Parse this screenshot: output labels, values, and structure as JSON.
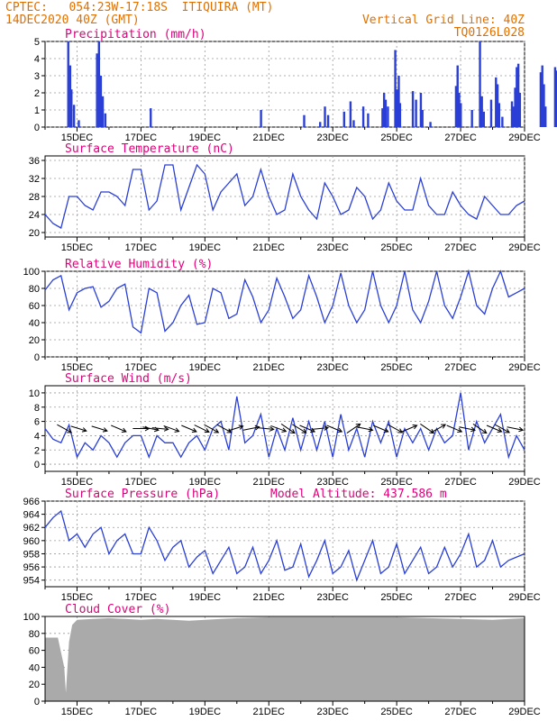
{
  "header": {
    "line1_left": "CPTEC:   054:23W-17:18S  ITIQUIRA (MT)",
    "line2_left": "14DEC2020 40Z (GMT)",
    "line1_right": "Vertical Grid Line: 40Z",
    "line2_right": "TQ0126L028"
  },
  "date_labels": [
    "15DEC",
    "17DEC",
    "19DEC",
    "21DEC",
    "23DEC",
    "25DEC",
    "27DEC",
    "29DEC"
  ],
  "colors": {
    "series": "#2a3fd6",
    "title": "#e0007a",
    "header": "#e07000",
    "cloud": "#aaaaaa",
    "grid": "#999999"
  },
  "chart_data": [
    {
      "type": "bar",
      "title": "Precipitation (mm/h)",
      "ylim": [
        0,
        5
      ],
      "yticks": [
        0,
        1,
        2,
        3,
        4,
        5
      ],
      "x_unit": "days since 14DEC2020 00Z",
      "values": [
        [
          0.72,
          5.0
        ],
        [
          0.78,
          3.6
        ],
        [
          0.82,
          2.2
        ],
        [
          0.9,
          1.3
        ],
        [
          1.05,
          0.4
        ],
        [
          1.62,
          4.3
        ],
        [
          1.68,
          5.0
        ],
        [
          1.74,
          3.0
        ],
        [
          1.8,
          1.8
        ],
        [
          1.88,
          0.8
        ],
        [
          3.3,
          1.1
        ],
        [
          6.75,
          1.0
        ],
        [
          8.1,
          0.7
        ],
        [
          8.6,
          0.3
        ],
        [
          8.75,
          1.2
        ],
        [
          8.85,
          0.7
        ],
        [
          9.35,
          0.9
        ],
        [
          9.55,
          1.5
        ],
        [
          9.65,
          0.4
        ],
        [
          9.95,
          1.2
        ],
        [
          10.1,
          0.8
        ],
        [
          10.55,
          1.1
        ],
        [
          10.6,
          2.0
        ],
        [
          10.65,
          1.6
        ],
        [
          10.72,
          1.2
        ],
        [
          10.95,
          4.5
        ],
        [
          11.0,
          2.2
        ],
        [
          11.06,
          3.0
        ],
        [
          11.1,
          1.4
        ],
        [
          11.5,
          2.1
        ],
        [
          11.6,
          1.6
        ],
        [
          11.75,
          2.0
        ],
        [
          11.8,
          1.0
        ],
        [
          12.05,
          0.3
        ],
        [
          12.85,
          2.4
        ],
        [
          12.9,
          3.6
        ],
        [
          12.95,
          2.0
        ],
        [
          13.0,
          1.4
        ],
        [
          13.35,
          1.0
        ],
        [
          13.6,
          5.0
        ],
        [
          13.66,
          1.8
        ],
        [
          13.72,
          0.9
        ],
        [
          13.95,
          1.6
        ],
        [
          14.1,
          2.9
        ],
        [
          14.15,
          2.5
        ],
        [
          14.2,
          1.4
        ],
        [
          14.3,
          0.6
        ],
        [
          14.6,
          1.5
        ],
        [
          14.65,
          1.2
        ],
        [
          14.7,
          2.3
        ],
        [
          14.75,
          3.5
        ],
        [
          14.8,
          3.7
        ],
        [
          14.85,
          2.0
        ],
        [
          15.5,
          3.2
        ],
        [
          15.55,
          3.6
        ],
        [
          15.6,
          2.5
        ],
        [
          15.65,
          1.2
        ],
        [
          15.95,
          3.5
        ],
        [
          16.0,
          3.3
        ],
        [
          16.05,
          3.1
        ],
        [
          16.1,
          2.6
        ],
        [
          16.15,
          1.5
        ],
        [
          16.2,
          0.7
        ]
      ]
    },
    {
      "type": "line",
      "title": "Surface Temperature (nC)",
      "ylim": [
        19,
        37
      ],
      "yticks": [
        20,
        24,
        28,
        32,
        36
      ],
      "x": [
        0,
        0.25,
        0.5,
        0.75,
        1,
        1.25,
        1.5,
        1.75,
        2,
        2.25,
        2.5,
        2.75,
        3,
        3.25,
        3.5,
        3.75,
        4,
        4.25,
        4.5,
        4.75,
        5,
        5.25,
        5.5,
        5.75,
        6,
        6.25,
        6.5,
        6.75,
        7,
        7.25,
        7.5,
        7.75,
        8,
        8.25,
        8.5,
        8.75,
        9,
        9.25,
        9.5,
        9.75,
        10,
        10.25,
        10.5,
        10.75,
        11,
        11.25,
        11.5,
        11.75,
        12,
        12.25,
        12.5,
        12.75,
        13,
        13.25,
        13.5,
        13.75,
        14,
        14.25,
        14.5,
        14.75,
        15
      ],
      "y": [
        24,
        22,
        21,
        28,
        28,
        26,
        25,
        29,
        29,
        28,
        26,
        34,
        34,
        25,
        27,
        35,
        35,
        25,
        30,
        35,
        33,
        25,
        29,
        31,
        33,
        26,
        28,
        34,
        28,
        24,
        25,
        33,
        28,
        25,
        23,
        31,
        28,
        24,
        25,
        30,
        28,
        23,
        25,
        31,
        27,
        25,
        25,
        32,
        26,
        24,
        24,
        29,
        26,
        24,
        23,
        28,
        26,
        24,
        24,
        26,
        27
      ]
    },
    {
      "type": "line",
      "title": "Relative Humidity (%)",
      "ylim": [
        0,
        100
      ],
      "yticks": [
        0,
        20,
        40,
        60,
        80,
        100
      ],
      "x": [
        0,
        0.25,
        0.5,
        0.75,
        1,
        1.25,
        1.5,
        1.75,
        2,
        2.25,
        2.5,
        2.75,
        3,
        3.25,
        3.5,
        3.75,
        4,
        4.25,
        4.5,
        4.75,
        5,
        5.25,
        5.5,
        5.75,
        6,
        6.25,
        6.5,
        6.75,
        7,
        7.25,
        7.5,
        7.75,
        8,
        8.25,
        8.5,
        8.75,
        9,
        9.25,
        9.5,
        9.75,
        10,
        10.25,
        10.5,
        10.75,
        11,
        11.25,
        11.5,
        11.75,
        12,
        12.25,
        12.5,
        12.75,
        13,
        13.25,
        13.5,
        13.75,
        14,
        14.25,
        14.5,
        14.75,
        15
      ],
      "y": [
        78,
        90,
        95,
        55,
        75,
        80,
        82,
        58,
        65,
        80,
        85,
        35,
        28,
        80,
        75,
        30,
        40,
        60,
        72,
        38,
        40,
        80,
        75,
        45,
        50,
        90,
        70,
        40,
        55,
        92,
        70,
        45,
        55,
        95,
        70,
        40,
        60,
        98,
        60,
        40,
        55,
        100,
        60,
        40,
        60,
        100,
        55,
        40,
        65,
        100,
        60,
        45,
        70,
        100,
        60,
        50,
        80,
        100,
        70,
        75,
        80
      ]
    },
    {
      "type": "line",
      "title": "Surface Wind (m/s)",
      "ylim": [
        -1,
        11
      ],
      "yticks": [
        0,
        2,
        4,
        6,
        8,
        10
      ],
      "x": [
        0,
        0.25,
        0.5,
        0.75,
        1,
        1.25,
        1.5,
        1.75,
        2,
        2.25,
        2.5,
        2.75,
        3,
        3.25,
        3.5,
        3.75,
        4,
        4.25,
        4.5,
        4.75,
        5,
        5.25,
        5.5,
        5.75,
        6,
        6.25,
        6.5,
        6.75,
        7,
        7.25,
        7.5,
        7.75,
        8,
        8.25,
        8.5,
        8.75,
        9,
        9.25,
        9.5,
        9.75,
        10,
        10.25,
        10.5,
        10.75,
        11,
        11.25,
        11.5,
        11.75,
        12,
        12.25,
        12.5,
        12.75,
        13,
        13.25,
        13.5,
        13.75,
        14,
        14.25,
        14.5,
        14.75,
        15
      ],
      "y": [
        5,
        3.5,
        3,
        5.5,
        1,
        3,
        2,
        4,
        3,
        1,
        3,
        4,
        4,
        1,
        4,
        3,
        3,
        1,
        3,
        4,
        2,
        5,
        6,
        2,
        9.5,
        3,
        4,
        7,
        1,
        5,
        2,
        6.5,
        2,
        6,
        2,
        6,
        1,
        7,
        2,
        5,
        1,
        6,
        3,
        6,
        1,
        5,
        3,
        5,
        2,
        5,
        3,
        4,
        10,
        2,
        6,
        3,
        5,
        7,
        1,
        4,
        2
      ],
      "arrows": [
        [
          0.6,
          0.5
        ],
        [
          1.05,
          0.3
        ],
        [
          1.7,
          0.3
        ],
        [
          2.3,
          0.4
        ],
        [
          3.0,
          0.0
        ],
        [
          3.3,
          0.2
        ],
        [
          3.6,
          0.1
        ],
        [
          3.95,
          0.35
        ],
        [
          4.5,
          0.4
        ],
        [
          4.9,
          0.45
        ],
        [
          5.2,
          0.5
        ],
        [
          5.6,
          0.5
        ],
        [
          5.95,
          -0.3
        ],
        [
          6.45,
          -0.2
        ],
        [
          6.9,
          0.1
        ],
        [
          7.3,
          0.35
        ],
        [
          7.6,
          0.6
        ],
        [
          7.95,
          0.55
        ],
        [
          8.2,
          0.4
        ],
        [
          8.6,
          -0.1
        ],
        [
          9.05,
          0.4
        ],
        [
          9.65,
          -0.6
        ],
        [
          10.0,
          0.2
        ],
        [
          10.5,
          0.4
        ],
        [
          10.95,
          0.5
        ],
        [
          11.4,
          -0.4
        ],
        [
          11.95,
          0.6
        ],
        [
          12.3,
          -0.5
        ],
        [
          12.8,
          0.4
        ],
        [
          13.2,
          0.2
        ],
        [
          13.6,
          0.6
        ],
        [
          14.05,
          0.4
        ],
        [
          14.3,
          0.5
        ],
        [
          14.7,
          0.2
        ]
      ]
    },
    {
      "type": "line",
      "title": "Surface Pressure (hPa)",
      "annotation": "Model Altitude: 437.586 m",
      "ylim": [
        953,
        966
      ],
      "yticks": [
        954,
        956,
        958,
        960,
        962,
        964,
        966
      ],
      "x": [
        0,
        0.25,
        0.5,
        0.75,
        1,
        1.25,
        1.5,
        1.75,
        2,
        2.25,
        2.5,
        2.75,
        3,
        3.25,
        3.5,
        3.75,
        4,
        4.25,
        4.5,
        4.75,
        5,
        5.25,
        5.5,
        5.75,
        6,
        6.25,
        6.5,
        6.75,
        7,
        7.25,
        7.5,
        7.75,
        8,
        8.25,
        8.5,
        8.75,
        9,
        9.25,
        9.5,
        9.75,
        10,
        10.25,
        10.5,
        10.75,
        11,
        11.25,
        11.5,
        11.75,
        12,
        12.25,
        12.5,
        12.75,
        13,
        13.25,
        13.5,
        13.75,
        14,
        14.25,
        14.5,
        14.75,
        15
      ],
      "y": [
        962,
        963.5,
        964.5,
        960,
        961,
        959,
        961,
        962,
        958,
        960,
        961,
        958,
        958,
        962,
        960,
        957,
        959,
        960,
        956,
        957.5,
        958.5,
        955,
        957,
        959,
        955,
        956,
        959,
        955,
        957,
        960,
        955.5,
        956,
        959.5,
        954.5,
        957,
        960,
        955,
        956,
        958.5,
        954,
        957,
        960,
        955,
        956,
        959.5,
        955,
        957,
        959,
        955,
        956,
        959,
        956,
        958,
        961,
        956,
        957,
        960,
        956,
        957,
        957.5,
        958
      ]
    },
    {
      "type": "area",
      "title": "Cloud Cover (%)",
      "ylim": [
        0,
        100
      ],
      "yticks": [
        0,
        20,
        40,
        60,
        80,
        100
      ],
      "x": [
        0,
        0.4,
        0.6,
        0.65,
        0.75,
        0.85,
        1,
        1.5,
        2,
        2.5,
        3,
        3.5,
        4,
        4.5,
        5,
        5.5,
        6,
        7,
        8,
        9,
        10,
        11,
        12,
        13,
        14,
        15
      ],
      "y": [
        75,
        75,
        40,
        10,
        70,
        90,
        96,
        97,
        98,
        97,
        96,
        97,
        96,
        95,
        96,
        97,
        98,
        99,
        99,
        99,
        99,
        99,
        98,
        97,
        96,
        98
      ]
    }
  ]
}
